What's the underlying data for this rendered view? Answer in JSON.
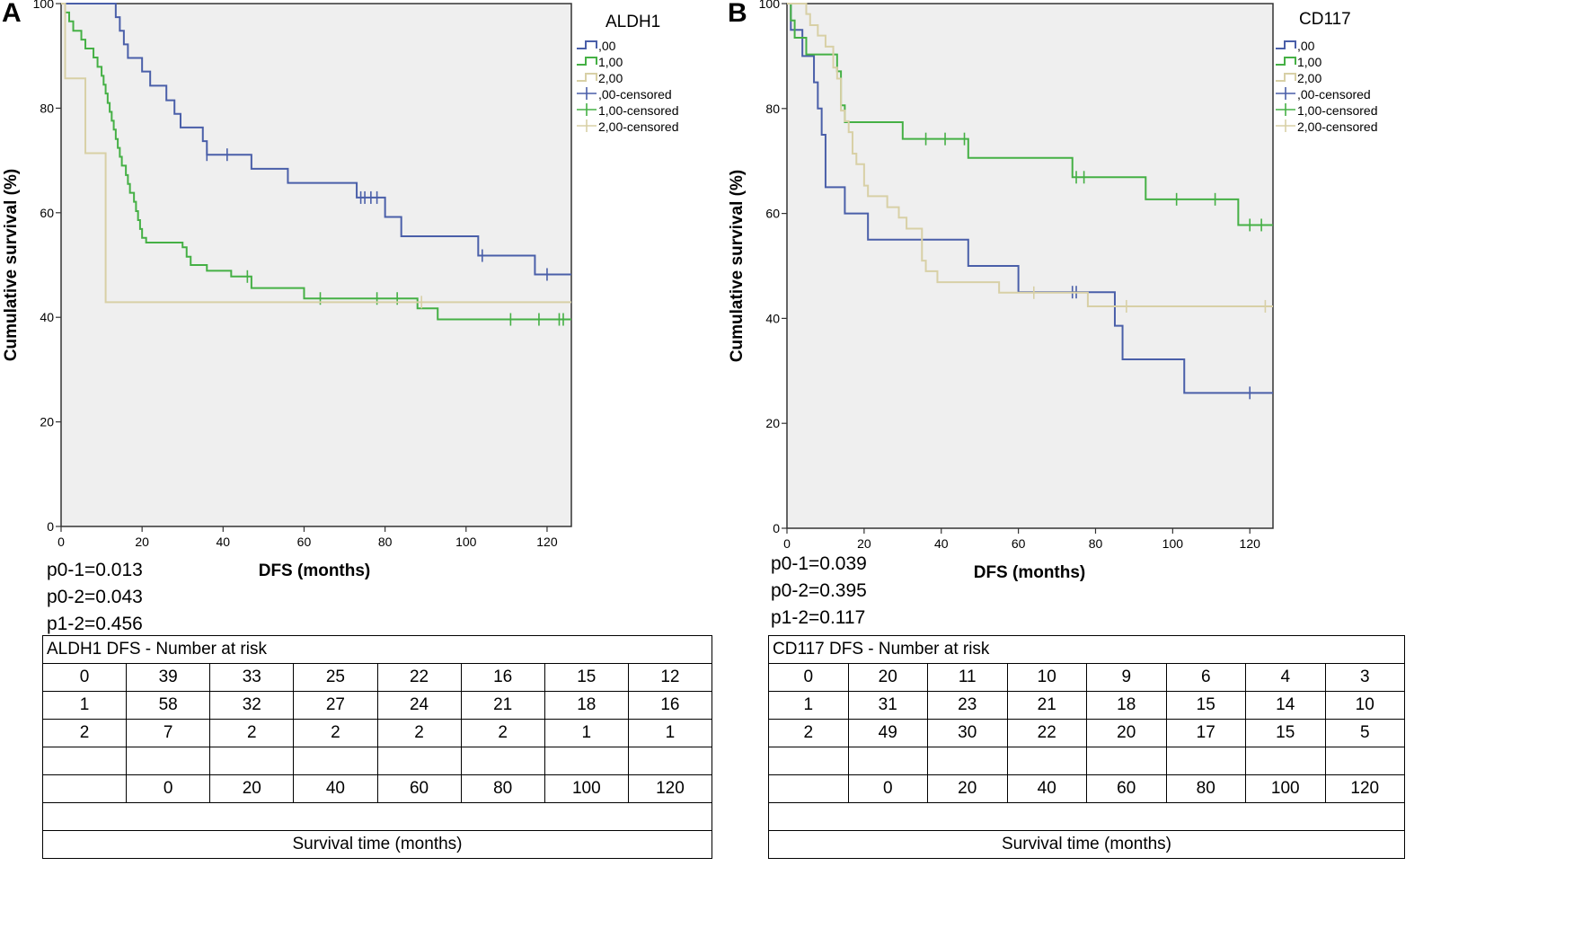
{
  "panels": [
    {
      "letter": "A",
      "chart_data": {
        "type": "line",
        "subtype": "kaplan-meier",
        "title": "ALDH1",
        "xlabel": "DFS (months)",
        "ylabel": "Cumulative survival (%)",
        "xlim": [
          0,
          126
        ],
        "ylim": [
          0,
          100
        ],
        "xticks": [
          0,
          20,
          40,
          60,
          80,
          100,
          120
        ],
        "yticks": [
          0,
          20,
          40,
          60,
          80,
          100
        ],
        "grid": false,
        "legend_position": "top-right (outside plot)",
        "legend": [
          ",00",
          "1,00",
          "2,00",
          ",00-censored",
          "1,00-censored",
          "2,00-censored"
        ],
        "series": [
          {
            "name": ",00",
            "color": "#4a5fa9",
            "steps": [
              [
                0,
                100
              ],
              [
                13.5,
                97.4
              ],
              [
                14.5,
                94.8
              ],
              [
                15.5,
                92.2
              ],
              [
                16.5,
                89.6
              ],
              [
                20,
                87
              ],
              [
                22,
                84.3
              ],
              [
                26,
                81.5
              ],
              [
                28,
                78.9
              ],
              [
                29.5,
                76.3
              ],
              [
                35,
                73.7
              ],
              [
                36,
                71.1
              ],
              [
                47,
                68.4
              ],
              [
                56,
                65.7
              ],
              [
                73,
                62.9
              ],
              [
                80,
                59.2
              ],
              [
                84,
                55.5
              ],
              [
                103,
                51.8
              ],
              [
                117,
                48.2
              ],
              [
                126,
                48.2
              ]
            ],
            "censored": [
              [
                36,
                71.1
              ],
              [
                41,
                71.1
              ],
              [
                74,
                62.9
              ],
              [
                75,
                62.9
              ],
              [
                76.5,
                62.9
              ],
              [
                78,
                62.9
              ],
              [
                104,
                51.8
              ],
              [
                120,
                48.2
              ]
            ]
          },
          {
            "name": "1,00",
            "color": "#45b045",
            "steps": [
              [
                0,
                100
              ],
              [
                1,
                98.3
              ],
              [
                2,
                96.6
              ],
              [
                3,
                94.8
              ],
              [
                5,
                93.1
              ],
              [
                6,
                91.4
              ],
              [
                8,
                89.7
              ],
              [
                9,
                87.9
              ],
              [
                10,
                86.2
              ],
              [
                10.5,
                84.5
              ],
              [
                11,
                82.8
              ],
              [
                11.5,
                81
              ],
              [
                12,
                79.3
              ],
              [
                12.5,
                77.6
              ],
              [
                13,
                75.9
              ],
              [
                13.5,
                74.1
              ],
              [
                14,
                72.4
              ],
              [
                14.5,
                70.7
              ],
              [
                15,
                69
              ],
              [
                16,
                67.2
              ],
              [
                16.5,
                65.5
              ],
              [
                17,
                63.8
              ],
              [
                18,
                62.1
              ],
              [
                18.5,
                60.3
              ],
              [
                19,
                58.6
              ],
              [
                19.5,
                56.9
              ],
              [
                20,
                55.2
              ],
              [
                21,
                54.3
              ],
              [
                30,
                53.4
              ],
              [
                31,
                51.6
              ],
              [
                32,
                50
              ],
              [
                36,
                48.9
              ],
              [
                42,
                47.8
              ],
              [
                47,
                45.6
              ],
              [
                60,
                43.6
              ],
              [
                88,
                41.7
              ],
              [
                93,
                39.6
              ],
              [
                126,
                39.6
              ]
            ],
            "censored": [
              [
                46,
                47.8
              ],
              [
                64,
                43.6
              ],
              [
                78,
                43.6
              ],
              [
                83,
                43.6
              ],
              [
                111,
                39.6
              ],
              [
                118,
                39.6
              ],
              [
                123,
                39.6
              ],
              [
                124,
                39.6
              ]
            ]
          },
          {
            "name": "2,00",
            "color": "#d8d0a6",
            "steps": [
              [
                0,
                100
              ],
              [
                1,
                85.7
              ],
              [
                6,
                71.4
              ],
              [
                11,
                42.9
              ],
              [
                126,
                42.9
              ]
            ],
            "censored": [
              [
                89,
                42.9
              ]
            ]
          }
        ]
      },
      "pvalues": [
        "p0-1=0.013",
        "p0-2=0.043",
        "p1-2=0.456"
      ],
      "risk_table": {
        "title": "ALDH1 DFS - Number at risk",
        "rows": [
          [
            "0",
            "39",
            "33",
            "25",
            "22",
            "16",
            "15",
            "12"
          ],
          [
            "1",
            "58",
            "32",
            "27",
            "24",
            "21",
            "18",
            "16"
          ],
          [
            "2",
            "7",
            "2",
            "2",
            "2",
            "2",
            "1",
            "1"
          ],
          [
            "",
            "",
            "",
            "",
            "",
            "",
            "",
            ""
          ],
          [
            "",
            "0",
            "20",
            "40",
            "60",
            "80",
            "100",
            "120"
          ]
        ],
        "footer": "Survival time (months)"
      }
    },
    {
      "letter": "B",
      "chart_data": {
        "type": "line",
        "subtype": "kaplan-meier",
        "title": "CD117",
        "xlabel": "DFS (months)",
        "ylabel": "Cumulative survival (%)",
        "xlim": [
          0,
          126
        ],
        "ylim": [
          0,
          100
        ],
        "xticks": [
          0,
          20,
          40,
          60,
          80,
          100,
          120
        ],
        "yticks": [
          0,
          20,
          40,
          60,
          80,
          100
        ],
        "grid": false,
        "legend_position": "top-right (outside plot)",
        "legend": [
          ",00",
          "1,00",
          "2,00",
          ",00-censored",
          "1,00-censored",
          "2,00-censored"
        ],
        "series": [
          {
            "name": ",00",
            "color": "#4a5fa9",
            "steps": [
              [
                0,
                100
              ],
              [
                1,
                95
              ],
              [
                4,
                90
              ],
              [
                7,
                85
              ],
              [
                8,
                80
              ],
              [
                9,
                75
              ],
              [
                10,
                65
              ],
              [
                15,
                60
              ],
              [
                21,
                55
              ],
              [
                47,
                50
              ],
              [
                60,
                45
              ],
              [
                85,
                38.6
              ],
              [
                87,
                32.2
              ],
              [
                103,
                25.8
              ],
              [
                126,
                25.8
              ]
            ],
            "censored": [
              [
                74,
                45
              ],
              [
                75,
                45
              ],
              [
                120,
                25.8
              ]
            ]
          },
          {
            "name": "1,00",
            "color": "#45b045",
            "steps": [
              [
                0,
                100
              ],
              [
                1,
                96.8
              ],
              [
                2,
                93.5
              ],
              [
                5,
                90.3
              ],
              [
                13,
                87.1
              ],
              [
                14,
                80.6
              ],
              [
                15,
                77.4
              ],
              [
                30,
                74.2
              ],
              [
                47,
                70.6
              ],
              [
                74,
                66.9
              ],
              [
                93,
                62.7
              ],
              [
                117,
                57.8
              ],
              [
                126,
                57.8
              ]
            ],
            "censored": [
              [
                36,
                74.2
              ],
              [
                41,
                74.2
              ],
              [
                46,
                74.2
              ],
              [
                75,
                66.9
              ],
              [
                77,
                66.9
              ],
              [
                101,
                62.7
              ],
              [
                111,
                62.7
              ],
              [
                120,
                57.8
              ],
              [
                123,
                57.8
              ]
            ]
          },
          {
            "name": "2,00",
            "color": "#d8d0a6",
            "steps": [
              [
                0,
                100
              ],
              [
                5,
                98
              ],
              [
                6,
                95.9
              ],
              [
                8,
                93.9
              ],
              [
                10,
                91.8
              ],
              [
                12,
                87.8
              ],
              [
                13,
                85.7
              ],
              [
                14,
                79.6
              ],
              [
                15,
                77.6
              ],
              [
                16,
                75.5
              ],
              [
                17,
                71.4
              ],
              [
                18,
                69.4
              ],
              [
                20,
                65.3
              ],
              [
                21,
                63.3
              ],
              [
                26,
                61.2
              ],
              [
                29,
                59.2
              ],
              [
                31,
                57.1
              ],
              [
                35,
                51
              ],
              [
                36,
                49
              ],
              [
                39,
                46.9
              ],
              [
                55,
                44.9
              ],
              [
                76,
                44.9
              ],
              [
                78,
                42.3
              ],
              [
                126,
                42.3
              ]
            ],
            "censored": [
              [
                64,
                44.9
              ],
              [
                88,
                42.3
              ],
              [
                124,
                42.3
              ]
            ]
          }
        ]
      },
      "pvalues": [
        "p0-1=0.039",
        "p0-2=0.395",
        "p1-2=0.117"
      ],
      "risk_table": {
        "title": "CD117 DFS - Number at risk",
        "rows": [
          [
            "0",
            "20",
            "11",
            "10",
            "9",
            "6",
            "4",
            "3"
          ],
          [
            "1",
            "31",
            "23",
            "21",
            "18",
            "15",
            "14",
            "10"
          ],
          [
            "2",
            "49",
            "30",
            "22",
            "20",
            "17",
            "15",
            "5"
          ],
          [
            "",
            "",
            "",
            "",
            "",
            "",
            "",
            ""
          ],
          [
            "",
            "0",
            "20",
            "40",
            "60",
            "80",
            "100",
            "120"
          ]
        ],
        "footer": "Survival time (months)"
      }
    }
  ]
}
